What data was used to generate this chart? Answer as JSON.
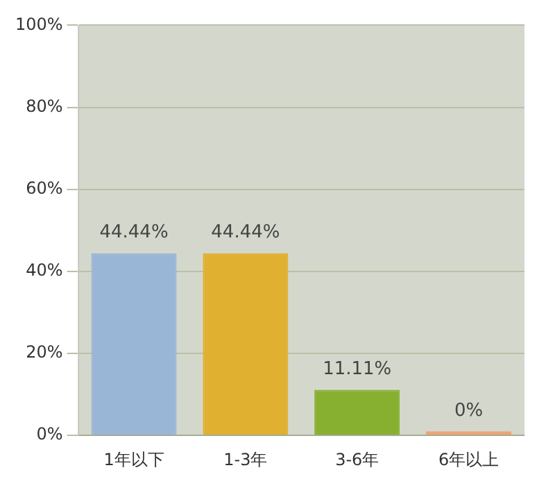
{
  "chart_data": {
    "type": "bar",
    "categories": [
      "1年以下",
      "1-3年",
      "3-6年",
      "6年以上"
    ],
    "values": [
      44.44,
      44.44,
      11.11,
      0
    ],
    "colors": [
      "#9ab6d6",
      "#e0b030",
      "#88b030",
      "#f0a070"
    ],
    "value_labels": [
      "44.44%",
      "44.44%",
      "11.11%",
      "0%"
    ],
    "ylim": [
      0,
      100
    ],
    "yticks": [
      {
        "value": 0,
        "label": "0%"
      },
      {
        "value": 20,
        "label": "20%"
      },
      {
        "value": 40,
        "label": "40%"
      },
      {
        "value": 60,
        "label": "60%"
      },
      {
        "value": 80,
        "label": "80%"
      },
      {
        "value": 100,
        "label": "100%"
      }
    ],
    "grid": "y"
  }
}
